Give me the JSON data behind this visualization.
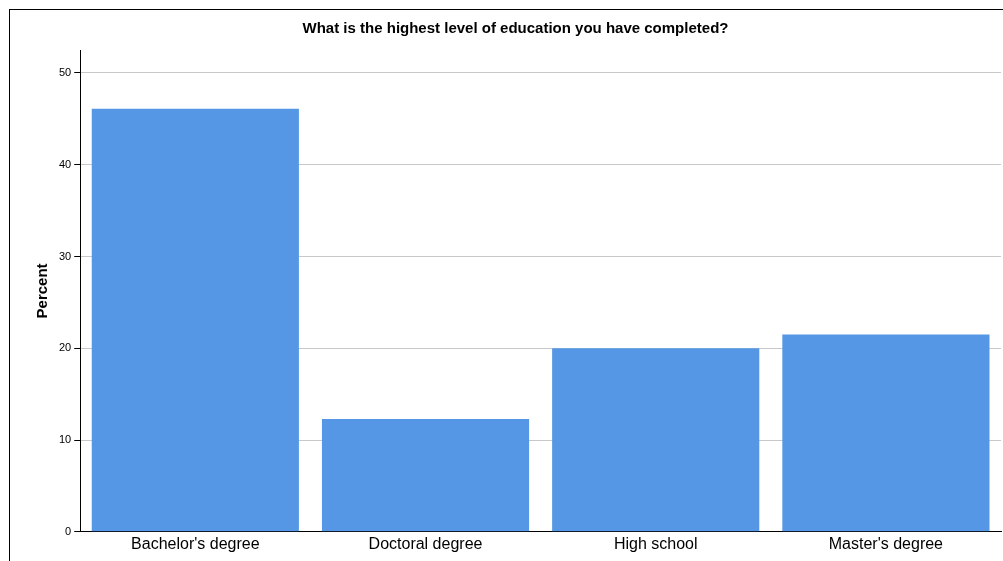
{
  "chart_data": {
    "type": "bar",
    "title": "What is the highest level of education you have completed?",
    "ylabel": "Percent",
    "categories": [
      "Bachelor's degree",
      "Doctoral degree",
      "High school",
      "Master's degree"
    ],
    "values": [
      46.1,
      12.3,
      20.0,
      21.5
    ],
    "color": "#5597e4",
    "ylim": [
      0,
      52.5
    ],
    "yticks": [
      0,
      10,
      20,
      30,
      40,
      50
    ],
    "grid": "y",
    "legend": false
  }
}
